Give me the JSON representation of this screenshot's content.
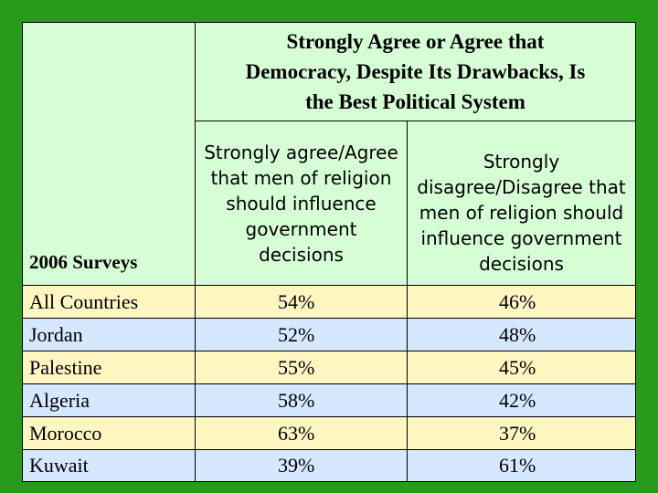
{
  "table": {
    "title": "Strongly Agree or Agree that Democracy, Despite Its Drawbacks, Is the Best Political System",
    "surveys_label": "2006 Surveys",
    "col1_header": "Strongly agree/Agree that men of religion should influence government decisions",
    "col2_header": "Strongly disagree/Disagree that men of religion should influence government decisions",
    "rows": [
      {
        "country": "All Countries",
        "agree": "54%",
        "disagree": "46%"
      },
      {
        "country": "Jordan",
        "agree": "52%",
        "disagree": "48%"
      },
      {
        "country": "Palestine",
        "agree": "55%",
        "disagree": "45%"
      },
      {
        "country": "Algeria",
        "agree": "58%",
        "disagree": "42%"
      },
      {
        "country": "Morocco",
        "agree": "63%",
        "disagree": "37%"
      },
      {
        "country": "Kuwait",
        "agree": "39%",
        "disagree": "61%"
      }
    ]
  },
  "colors": {
    "frame": "#2a9a1c",
    "header_bg": "#d6ffd6",
    "row_yellow": "#fff6c2",
    "row_blue": "#d6e8ff"
  }
}
